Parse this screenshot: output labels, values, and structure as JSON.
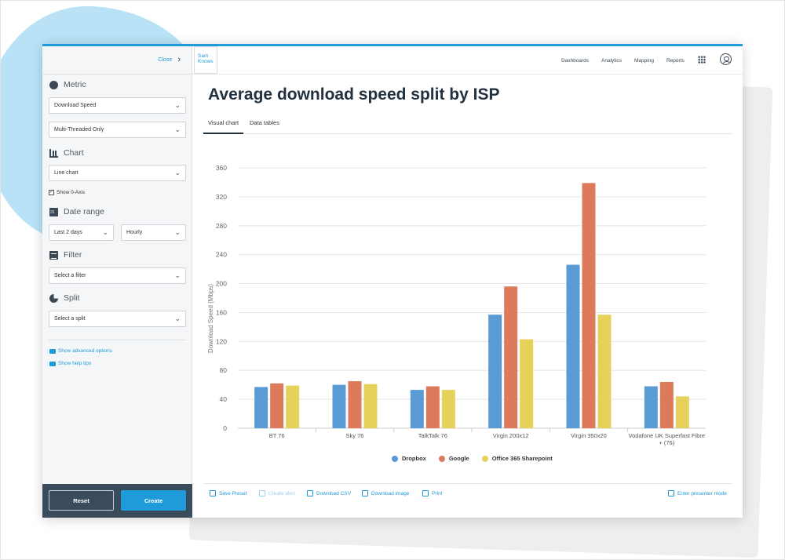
{
  "sidebar": {
    "close_label": "Close",
    "metric": {
      "title": "Metric",
      "select1": "Download Speed",
      "select2": "Multi-Threaded Only"
    },
    "chart": {
      "title": "Chart",
      "select": "Line chart",
      "show_zero_axis": "Show 0-Axis"
    },
    "date_range": {
      "title": "Date range",
      "range": "Last 2 days",
      "granularity": "Hourly"
    },
    "filter": {
      "title": "Filter",
      "placeholder": "Select a filter"
    },
    "split": {
      "title": "Split",
      "placeholder": "Select a split"
    },
    "advanced_link": "Show advanced options",
    "help_link": "Show help tips",
    "reset_label": "Reset",
    "create_label": "Create"
  },
  "header": {
    "logo_line1": "Sam",
    "logo_line2": "Knows",
    "nav": [
      "Dashboards",
      "Analytics",
      "Mapping",
      "Reports"
    ]
  },
  "main": {
    "title": "Average download speed split by ISP",
    "tabs": [
      "Visual chart",
      "Data tables"
    ],
    "actions": [
      "Save Preset",
      "Create alert",
      "Download CSV",
      "Download image",
      "Print"
    ],
    "presenter": "Enter presenter mode"
  },
  "colors": {
    "accent": "#1e9bd8",
    "dropbox": "#5b9bd5",
    "google": "#dd7a5c",
    "office": "#e6d25b",
    "sidebar_footer": "#3a4b5b"
  },
  "chart_data": {
    "type": "bar",
    "title": "",
    "ylabel": "Download Speed (Mbps)",
    "xlabel": "",
    "ylim": [
      0,
      360
    ],
    "yticks": [
      0,
      40,
      80,
      120,
      160,
      200,
      240,
      280,
      320,
      360
    ],
    "categories": [
      "BT 76",
      "Sky 76",
      "TalkTalk 76",
      "Virgin 200x12",
      "Virgin 350x20",
      "Vodafone UK Superfast Fibre + (76)"
    ],
    "series": [
      {
        "name": "Dropbox",
        "color": "#5b9bd5",
        "values": [
          57,
          60,
          53,
          157,
          226,
          58
        ]
      },
      {
        "name": "Google",
        "color": "#dd7a5c",
        "values": [
          62,
          65,
          58,
          196,
          339,
          64
        ]
      },
      {
        "name": "Office 365 Sharepoint",
        "color": "#e6d25b",
        "values": [
          59,
          61,
          53,
          123,
          157,
          44
        ]
      }
    ],
    "legend_position": "bottom",
    "grid": true
  }
}
